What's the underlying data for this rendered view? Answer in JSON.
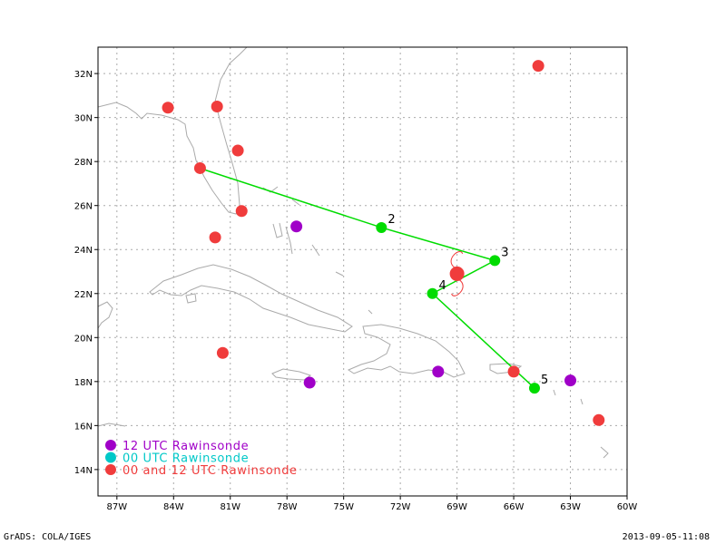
{
  "footer": {
    "left": "GrADS: COLA/IGES",
    "right": "2013-09-05-11:08"
  },
  "map": {
    "lon_range": [
      -88,
      -60
    ],
    "lat_range": [
      12.8,
      33.2
    ],
    "grid": true,
    "x_ticks": [
      {
        "lon": -87,
        "label": "87W"
      },
      {
        "lon": -84,
        "label": "84W"
      },
      {
        "lon": -81,
        "label": "81W"
      },
      {
        "lon": -78,
        "label": "78W"
      },
      {
        "lon": -75,
        "label": "75W"
      },
      {
        "lon": -72,
        "label": "72W"
      },
      {
        "lon": -69,
        "label": "69W"
      },
      {
        "lon": -66,
        "label": "66W"
      },
      {
        "lon": -63,
        "label": "63W"
      },
      {
        "lon": -60,
        "label": "60W"
      }
    ],
    "y_ticks": [
      {
        "lat": 14,
        "label": "14N"
      },
      {
        "lat": 16,
        "label": "16N"
      },
      {
        "lat": 18,
        "label": "18N"
      },
      {
        "lat": 20,
        "label": "20N"
      },
      {
        "lat": 22,
        "label": "22N"
      },
      {
        "lat": 24,
        "label": "24N"
      },
      {
        "lat": 26,
        "label": "26N"
      },
      {
        "lat": 28,
        "label": "28N"
      },
      {
        "lat": 30,
        "label": "30N"
      },
      {
        "lat": 32,
        "label": "32N"
      }
    ]
  },
  "colors": {
    "track": "#00dc00",
    "stations_12utc": "#a000c8",
    "stations_00utc": "#00c8c8",
    "stations_both": "#f03c3c",
    "coastline": "#aaaaaa",
    "grid": "#aaaaaa",
    "storm_symbol": "#f03c3c"
  },
  "track": {
    "points": [
      {
        "lon": -82.8,
        "lat": 27.75,
        "label": ""
      },
      {
        "lon": -73.0,
        "lat": 25.0,
        "label": "2"
      },
      {
        "lon": -67.0,
        "lat": 23.5,
        "label": "3"
      },
      {
        "lon": -70.3,
        "lat": 22.0,
        "label": "4"
      },
      {
        "lon": -64.9,
        "lat": 17.7,
        "label": "5"
      }
    ]
  },
  "storm_center": {
    "lon": -69.0,
    "lat": 22.9,
    "icon": "tropical-storm-icon"
  },
  "stations": {
    "utc12": [
      {
        "lon": -77.5,
        "lat": 25.05
      },
      {
        "lon": -76.8,
        "lat": 17.95
      },
      {
        "lon": -70.0,
        "lat": 18.45
      },
      {
        "lon": -63.0,
        "lat": 18.05
      }
    ],
    "utc00": [],
    "both": [
      {
        "lon": -84.3,
        "lat": 30.45
      },
      {
        "lon": -81.7,
        "lat": 30.5
      },
      {
        "lon": -80.6,
        "lat": 28.5
      },
      {
        "lon": -82.6,
        "lat": 27.7
      },
      {
        "lon": -80.4,
        "lat": 25.75
      },
      {
        "lon": -81.8,
        "lat": 24.55
      },
      {
        "lon": -81.4,
        "lat": 19.3
      },
      {
        "lon": -64.7,
        "lat": 32.35
      },
      {
        "lon": -66.0,
        "lat": 18.45
      },
      {
        "lon": -61.5,
        "lat": 16.25
      }
    ]
  },
  "legend": [
    {
      "label": "12 UTC Rawinsonde",
      "color": "#a000c8"
    },
    {
      "label": "00 UTC Rawinsonde",
      "color": "#00c8c8"
    },
    {
      "label": "00 and 12 UTC Rawinsonde",
      "color": "#f03c3c"
    }
  ]
}
